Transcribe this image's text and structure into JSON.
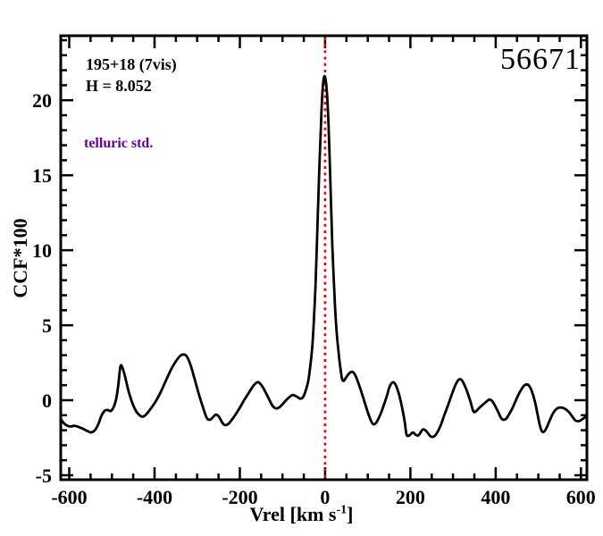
{
  "figure": {
    "background": "#ffffff",
    "annotations": {
      "target_label": "195+18 (7vis)",
      "hmag_label": "H = 8.052",
      "telluric_label": "telluric std.",
      "obs_number": "56671"
    },
    "colors": {
      "curve": "#000000",
      "frame": "#000000",
      "zero_line": "#ee0000",
      "telluric_text": "#660099",
      "text": "#000000"
    }
  },
  "chart_data": {
    "type": "line",
    "title": "",
    "xlabel": "Vrel [km s^-1]",
    "xlabel_parts": {
      "pre": "Vrel [km s",
      "sup": "-1",
      "post": "]"
    },
    "ylabel": "CCF*100",
    "xlim": [
      -620,
      614
    ],
    "ylim": [
      -5.3,
      24.3
    ],
    "x_major_ticks": [
      -600,
      -400,
      -200,
      0,
      200,
      400,
      600
    ],
    "x_minor_step": 50,
    "y_major_ticks": [
      -5,
      0,
      5,
      10,
      15,
      20
    ],
    "y_minor_step": 1,
    "grid": false,
    "legend": null,
    "vline": {
      "x": 0,
      "color": "#ee0000",
      "style": "dotted"
    },
    "series": [
      {
        "name": "CCF",
        "color": "#000000",
        "points": [
          [
            -620,
            -1.25
          ],
          [
            -612,
            -1.55
          ],
          [
            -604,
            -1.7
          ],
          [
            -596,
            -1.75
          ],
          [
            -588,
            -1.7
          ],
          [
            -578,
            -1.78
          ],
          [
            -568,
            -1.9
          ],
          [
            -558,
            -2.05
          ],
          [
            -549,
            -2.15
          ],
          [
            -540,
            -2.0
          ],
          [
            -532,
            -1.6
          ],
          [
            -524,
            -1.0
          ],
          [
            -517,
            -0.7
          ],
          [
            -510,
            -0.65
          ],
          [
            -503,
            -0.72
          ],
          [
            -496,
            -0.45
          ],
          [
            -490,
            0.1
          ],
          [
            -485,
            1.0
          ],
          [
            -480,
            2.25
          ],
          [
            -475,
            2.15
          ],
          [
            -469,
            1.55
          ],
          [
            -461,
            0.6
          ],
          [
            -452,
            -0.2
          ],
          [
            -443,
            -0.75
          ],
          [
            -435,
            -1.0
          ],
          [
            -428,
            -1.1
          ],
          [
            -420,
            -0.95
          ],
          [
            -410,
            -0.6
          ],
          [
            -400,
            -0.2
          ],
          [
            -388,
            0.4
          ],
          [
            -375,
            1.2
          ],
          [
            -362,
            2.0
          ],
          [
            -350,
            2.6
          ],
          [
            -340,
            2.95
          ],
          [
            -331,
            3.05
          ],
          [
            -324,
            2.9
          ],
          [
            -315,
            2.3
          ],
          [
            -305,
            1.3
          ],
          [
            -295,
            0.3
          ],
          [
            -285,
            -0.6
          ],
          [
            -277,
            -1.2
          ],
          [
            -270,
            -1.3
          ],
          [
            -262,
            -1.1
          ],
          [
            -256,
            -0.95
          ],
          [
            -249,
            -1.1
          ],
          [
            -242,
            -1.45
          ],
          [
            -236,
            -1.65
          ],
          [
            -228,
            -1.6
          ],
          [
            -220,
            -1.35
          ],
          [
            -210,
            -0.95
          ],
          [
            -200,
            -0.5
          ],
          [
            -190,
            0.0
          ],
          [
            -180,
            0.45
          ],
          [
            -170,
            0.9
          ],
          [
            -162,
            1.15
          ],
          [
            -156,
            1.2
          ],
          [
            -148,
            0.95
          ],
          [
            -140,
            0.55
          ],
          [
            -132,
            0.1
          ],
          [
            -125,
            -0.3
          ],
          [
            -119,
            -0.5
          ],
          [
            -113,
            -0.55
          ],
          [
            -106,
            -0.45
          ],
          [
            -98,
            -0.2
          ],
          [
            -90,
            0.05
          ],
          [
            -82,
            0.25
          ],
          [
            -76,
            0.35
          ],
          [
            -70,
            0.3
          ],
          [
            -64,
            0.2
          ],
          [
            -58,
            0.1
          ],
          [
            -52,
            0.2
          ],
          [
            -46,
            0.6
          ],
          [
            -40,
            1.2
          ],
          [
            -35,
            2.2
          ],
          [
            -30,
            3.6
          ],
          [
            -26,
            5.5
          ],
          [
            -22,
            8.0
          ],
          [
            -18,
            11.5
          ],
          [
            -14,
            15.0
          ],
          [
            -10,
            18.2
          ],
          [
            -7,
            20.2
          ],
          [
            -4,
            21.3
          ],
          [
            -1,
            21.6
          ],
          [
            2,
            21.2
          ],
          [
            5,
            20.2
          ],
          [
            8,
            18.3
          ],
          [
            11,
            15.8
          ],
          [
            14,
            13.0
          ],
          [
            17,
            10.3
          ],
          [
            20,
            8.2
          ],
          [
            23,
            6.4
          ],
          [
            26,
            5.0
          ],
          [
            29,
            3.9
          ],
          [
            33,
            2.8
          ],
          [
            37,
            1.9
          ],
          [
            40,
            1.4
          ],
          [
            44,
            1.3
          ],
          [
            50,
            1.55
          ],
          [
            57,
            1.8
          ],
          [
            63,
            1.9
          ],
          [
            68,
            1.8
          ],
          [
            74,
            1.45
          ],
          [
            81,
            0.9
          ],
          [
            88,
            0.3
          ],
          [
            95,
            -0.35
          ],
          [
            102,
            -0.95
          ],
          [
            108,
            -1.4
          ],
          [
            113,
            -1.6
          ],
          [
            118,
            -1.55
          ],
          [
            124,
            -1.3
          ],
          [
            131,
            -0.85
          ],
          [
            138,
            -0.3
          ],
          [
            145,
            0.3
          ],
          [
            150,
            0.8
          ],
          [
            155,
            1.1
          ],
          [
            160,
            1.2
          ],
          [
            165,
            1.05
          ],
          [
            170,
            0.7
          ],
          [
            176,
            0.1
          ],
          [
            182,
            -0.7
          ],
          [
            187,
            -1.5
          ],
          [
            191,
            -2.3
          ],
          [
            197,
            -2.35
          ],
          [
            203,
            -2.2
          ],
          [
            207,
            -2.15
          ],
          [
            212,
            -2.3
          ],
          [
            218,
            -2.35
          ],
          [
            224,
            -2.15
          ],
          [
            229,
            -1.95
          ],
          [
            235,
            -2.0
          ],
          [
            241,
            -2.2
          ],
          [
            247,
            -2.4
          ],
          [
            252,
            -2.45
          ],
          [
            258,
            -2.35
          ],
          [
            265,
            -2.05
          ],
          [
            272,
            -1.6
          ],
          [
            280,
            -0.95
          ],
          [
            288,
            -0.35
          ],
          [
            296,
            0.3
          ],
          [
            304,
            0.9
          ],
          [
            310,
            1.25
          ],
          [
            315,
            1.4
          ],
          [
            320,
            1.35
          ],
          [
            327,
            1.0
          ],
          [
            334,
            0.5
          ],
          [
            341,
            -0.1
          ],
          [
            348,
            -0.75
          ],
          [
            355,
            -0.7
          ],
          [
            362,
            -0.5
          ],
          [
            370,
            -0.3
          ],
          [
            378,
            -0.1
          ],
          [
            386,
            0.05
          ],
          [
            393,
            -0.1
          ],
          [
            400,
            -0.45
          ],
          [
            407,
            -0.85
          ],
          [
            413,
            -1.2
          ],
          [
            418,
            -1.3
          ],
          [
            424,
            -1.25
          ],
          [
            430,
            -1.0
          ],
          [
            438,
            -0.6
          ],
          [
            446,
            -0.1
          ],
          [
            454,
            0.4
          ],
          [
            462,
            0.8
          ],
          [
            468,
            1.0
          ],
          [
            474,
            1.05
          ],
          [
            480,
            0.9
          ],
          [
            486,
            0.5
          ],
          [
            492,
            -0.1
          ],
          [
            498,
            -0.9
          ],
          [
            503,
            -1.6
          ],
          [
            508,
            -2.05
          ],
          [
            513,
            -2.1
          ],
          [
            519,
            -1.85
          ],
          [
            526,
            -1.4
          ],
          [
            533,
            -0.95
          ],
          [
            540,
            -0.65
          ],
          [
            548,
            -0.5
          ],
          [
            556,
            -0.5
          ],
          [
            564,
            -0.6
          ],
          [
            572,
            -0.8
          ],
          [
            580,
            -1.1
          ],
          [
            587,
            -1.35
          ],
          [
            593,
            -1.4
          ],
          [
            599,
            -1.35
          ],
          [
            606,
            -1.2
          ],
          [
            614,
            -1.05
          ]
        ]
      }
    ]
  }
}
